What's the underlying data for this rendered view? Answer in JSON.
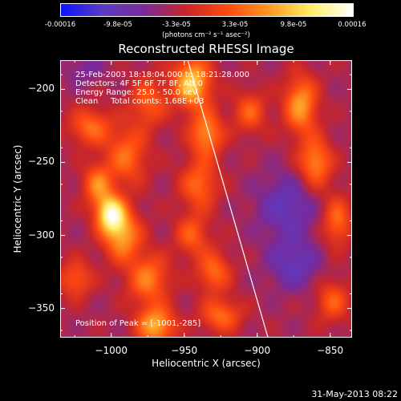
{
  "colorbar": {
    "stops": [
      "#0a14ff",
      "#5a3cc4",
      "#7a2a98",
      "#c8262a",
      "#ff4a10",
      "#ff9a22",
      "#ffee66",
      "#ffffff"
    ],
    "ticks": [
      "-0.00016",
      "-9.8e-05",
      "-3.3e-05",
      "3.3e-05",
      "9.8e-05",
      "0.00016"
    ],
    "units": "(photons cm⁻² s⁻¹ asec⁻²)"
  },
  "chart_data": {
    "type": "heatmap",
    "title": "Reconstructed RHESSI Image",
    "xlabel": "Heliocentric X (arcsec)",
    "ylabel": "Heliocentric Y (arcsec)",
    "xlim": [
      -1035,
      -835
    ],
    "ylim": [
      -370,
      -180
    ],
    "xticks": [
      -1000,
      -950,
      -900,
      -850
    ],
    "yticks": [
      -200,
      -250,
      -300,
      -350
    ],
    "xtick_labels": [
      "−1000",
      "−950",
      "−900",
      "−850"
    ],
    "ytick_labels": [
      "−200",
      "−250",
      "−300",
      "−350"
    ],
    "color_range": [
      -0.00016,
      0.00016
    ],
    "limb_line": [
      [
        -948,
        -180
      ],
      [
        -893,
        -370
      ]
    ],
    "peak": [
      -1001,
      -285
    ],
    "blobs": [
      {
        "x": -1001,
        "y": -285,
        "amp": 0.00016,
        "sx": 7,
        "sy": 9
      },
      {
        "x": -993,
        "y": -300,
        "amp": 0.00011,
        "sx": 9,
        "sy": 12
      },
      {
        "x": -1010,
        "y": -265,
        "amp": 9e-05,
        "sx": 7,
        "sy": 10
      },
      {
        "x": -990,
        "y": -245,
        "amp": 8e-05,
        "sx": 10,
        "sy": 14
      },
      {
        "x": -1015,
        "y": -225,
        "amp": 8e-05,
        "sx": 10,
        "sy": 9
      },
      {
        "x": -975,
        "y": -208,
        "amp": 7e-05,
        "sx": 9,
        "sy": 12
      },
      {
        "x": -1025,
        "y": -330,
        "amp": 7e-05,
        "sx": 8,
        "sy": 9
      },
      {
        "x": -975,
        "y": -330,
        "amp": 9e-05,
        "sx": 10,
        "sy": 12
      },
      {
        "x": -970,
        "y": -362,
        "amp": 0.00012,
        "sx": 9,
        "sy": 9
      },
      {
        "x": -945,
        "y": -195,
        "amp": 0.00014,
        "sx": 9,
        "sy": 12
      },
      {
        "x": -935,
        "y": -230,
        "amp": 0.0001,
        "sx": 8,
        "sy": 11
      },
      {
        "x": -940,
        "y": -265,
        "amp": 8e-05,
        "sx": 9,
        "sy": 12
      },
      {
        "x": -945,
        "y": -300,
        "amp": 7e-05,
        "sx": 8,
        "sy": 10
      },
      {
        "x": -930,
        "y": -325,
        "amp": 8e-05,
        "sx": 8,
        "sy": 10
      },
      {
        "x": -925,
        "y": -355,
        "amp": 8e-05,
        "sx": 10,
        "sy": 8
      },
      {
        "x": -905,
        "y": -215,
        "amp": 7e-05,
        "sx": 8,
        "sy": 10
      },
      {
        "x": -870,
        "y": -210,
        "amp": 0.00011,
        "sx": 8,
        "sy": 14
      },
      {
        "x": -860,
        "y": -250,
        "amp": 0.0001,
        "sx": 8,
        "sy": 12
      },
      {
        "x": -845,
        "y": -290,
        "amp": 8e-05,
        "sx": 7,
        "sy": 12
      },
      {
        "x": -848,
        "y": -345,
        "amp": 7e-05,
        "sx": 8,
        "sy": 10
      },
      {
        "x": -880,
        "y": -280,
        "amp": -6e-05,
        "sx": 14,
        "sy": 16
      },
      {
        "x": -875,
        "y": -320,
        "amp": -6e-05,
        "sx": 12,
        "sy": 12
      },
      {
        "x": -1020,
        "y": -185,
        "amp": -3e-05,
        "sx": 10,
        "sy": 8
      }
    ]
  },
  "info": {
    "line1": "25-Feb-2003 18:18:04.000 to 18:21:28.000",
    "line2": "Detectors: 4F 5F 6F 7F 8F, Att 0",
    "line3": "Energy Range: 25.0 - 50.0 keV",
    "line4": "Clean     Total counts: 1.68E+03",
    "peak_label": "Position of Peak = [-1001,-285]"
  },
  "timestamp": "31-May-2013 08:22"
}
